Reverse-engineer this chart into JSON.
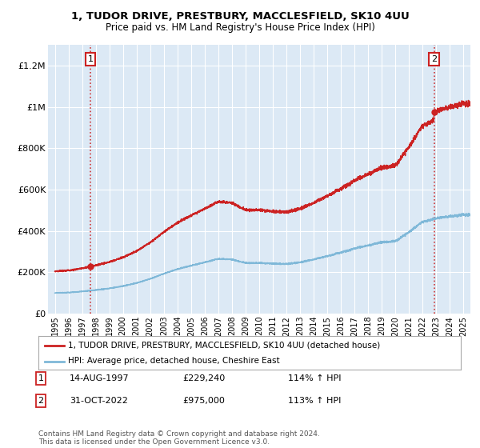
{
  "title": "1, TUDOR DRIVE, PRESTBURY, MACCLESFIELD, SK10 4UU",
  "subtitle": "Price paid vs. HM Land Registry's House Price Index (HPI)",
  "legend_line1": "1, TUDOR DRIVE, PRESTBURY, MACCLESFIELD, SK10 4UU (detached house)",
  "legend_line2": "HPI: Average price, detached house, Cheshire East",
  "annotation1_date": "14-AUG-1997",
  "annotation1_price": "£229,240",
  "annotation1_hpi": "114% ↑ HPI",
  "annotation1_year": 1997.62,
  "annotation1_value": 229240,
  "annotation2_date": "31-OCT-2022",
  "annotation2_price": "£975,000",
  "annotation2_hpi": "113% ↑ HPI",
  "annotation2_year": 2022.83,
  "annotation2_value": 975000,
  "footer": "Contains HM Land Registry data © Crown copyright and database right 2024.\nThis data is licensed under the Open Government Licence v3.0.",
  "ylim": [
    0,
    1300000
  ],
  "xlim_start": 1994.5,
  "xlim_end": 2025.5,
  "hpi_color": "#7fb8d8",
  "price_color": "#cc2222",
  "bg_color": "#ffffff",
  "plot_bg": "#dce9f5",
  "grid_color": "#ffffff",
  "yticks": [
    0,
    200000,
    400000,
    600000,
    800000,
    1000000,
    1200000
  ],
  "ytick_labels": [
    "£0",
    "£200K",
    "£400K",
    "£600K",
    "£800K",
    "£1M",
    "£1.2M"
  ],
  "xticks": [
    1995,
    1996,
    1997,
    1998,
    1999,
    2000,
    2001,
    2002,
    2003,
    2004,
    2005,
    2006,
    2007,
    2008,
    2009,
    2010,
    2011,
    2012,
    2013,
    2014,
    2015,
    2016,
    2017,
    2018,
    2019,
    2020,
    2021,
    2022,
    2023,
    2024,
    2025
  ]
}
